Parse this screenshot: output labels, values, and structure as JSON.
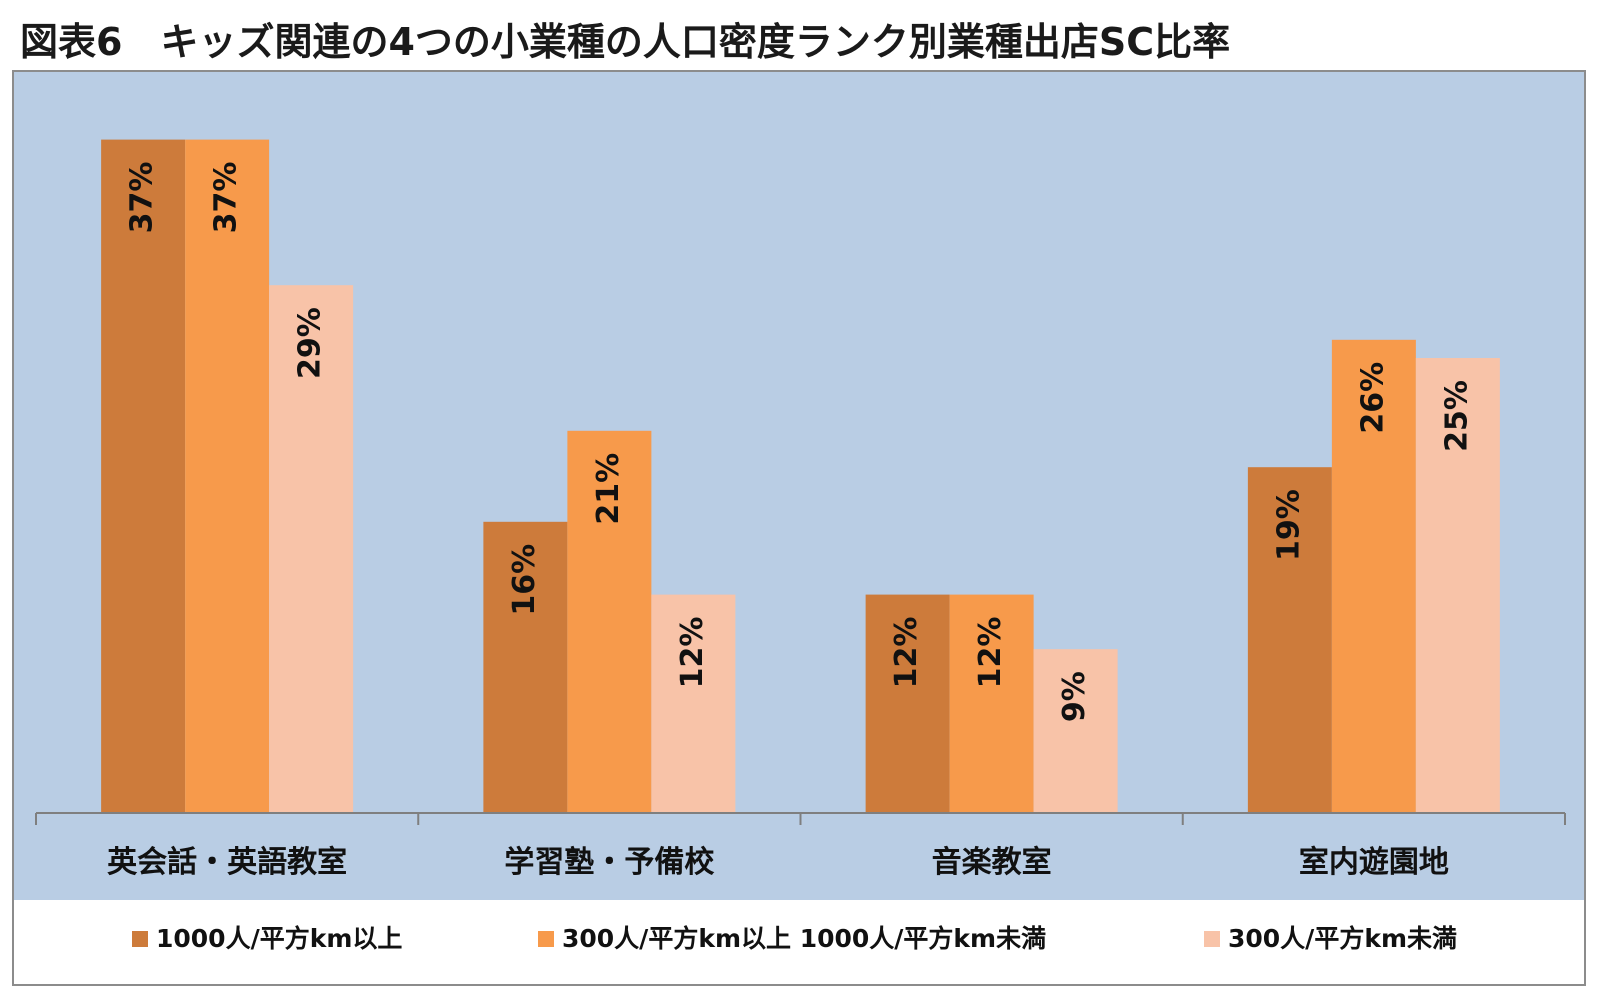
{
  "title": "図表6　キッズ関連の4つの小業種の人口密度ランク別業種出店SC比率",
  "colors": {
    "plot_bg": "#b9cde4",
    "axis": "#7f7f7f"
  },
  "chart_data": {
    "type": "bar",
    "title": "図表6　キッズ関連の4つの小業種の人口密度ランク別業種出店SC比率",
    "categories": [
      "英会話・英語教室",
      "学習塾・予備校",
      "音楽教室",
      "室内遊園地"
    ],
    "series": [
      {
        "name": "1000人/平方km以上",
        "color": "#cd7b3b",
        "values": [
          37,
          16,
          12,
          19
        ],
        "labels": [
          "37%",
          "16%",
          "12%",
          "19%"
        ]
      },
      {
        "name": "300人/平方km以上 1000人/平方km未満",
        "color": "#f79a4b",
        "values": [
          37,
          21,
          12,
          26
        ],
        "labels": [
          "37%",
          "21%",
          "12%",
          "26%"
        ]
      },
      {
        "name": "300人/平方km未満",
        "color": "#f8c3a8",
        "values": [
          29,
          12,
          9,
          25
        ],
        "labels": [
          "29%",
          "12%",
          "9%",
          "25%"
        ]
      }
    ],
    "ylim": [
      0,
      40
    ],
    "legend_position": "bottom",
    "grid": false
  }
}
